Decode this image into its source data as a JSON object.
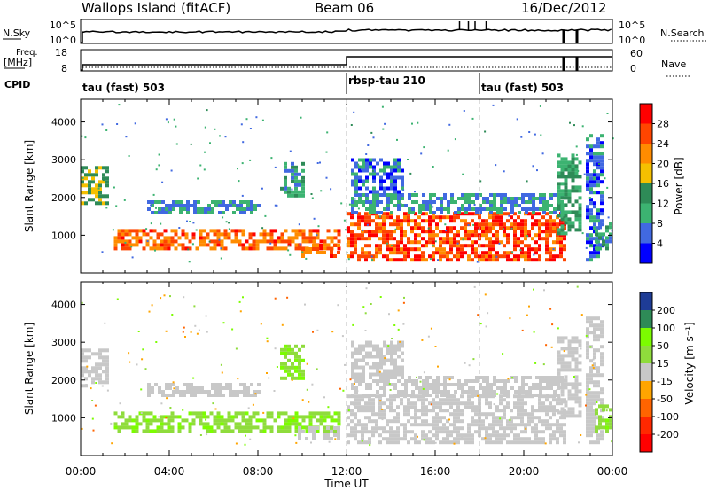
{
  "header": {
    "title": "Wallops Island (fitACF)",
    "beam": "Beam 06",
    "date": "16/Dec/2012"
  },
  "top_panels": {
    "nsky_label": "N.Sky",
    "nsky_ticks": [
      "10^5",
      "10^0"
    ],
    "nsearch_label": "N.Search",
    "nsearch_ticks": [
      "10^5",
      "10^0"
    ],
    "freq_label_top": "Freq.",
    "freq_label_bottom": "[MHz]",
    "freq_ticks": [
      "18",
      "8"
    ],
    "nave_label": "Nave",
    "nave_ticks": [
      "60",
      "0"
    ],
    "cpid_label": "CPID",
    "cpid_segments": [
      "tau (fast) 503",
      "rbsp-tau 210",
      "tau (fast) 503"
    ]
  },
  "power_panel": {
    "ylabel": "Slant Range [km]",
    "cbar_label": "Power [dB]",
    "cbar_ticks": [
      "28",
      "24",
      "20",
      "16",
      "12",
      "8",
      "4"
    ],
    "cbar_colors": [
      "#ff0000",
      "#ff4500",
      "#ff8c00",
      "#f5c000",
      "#2e8b57",
      "#3cb371",
      "#4169e1",
      "#0000ff"
    ]
  },
  "velocity_panel": {
    "ylabel": "Slant Range [km]",
    "cbar_label": "Velocity [m s⁻¹]",
    "cbar_ticks": [
      "200",
      "100",
      "50",
      "15",
      "-15",
      "-50",
      "-100",
      "-200"
    ],
    "cbar_colors": [
      "#1e3c96",
      "#2e8b57",
      "#7cfc00",
      "#8fdc3c",
      "#c8c8c8",
      "#ffa500",
      "#ff6400",
      "#ff2800",
      "#ff0000"
    ]
  },
  "xaxis": {
    "ticks": [
      "00:00",
      "04:00",
      "08:00",
      "12:00",
      "16:00",
      "20:00",
      "00:00"
    ],
    "label": "Time UT"
  },
  "chart_data": [
    {
      "type": "heatmap",
      "name_hint": "power",
      "xlabel": "Time UT",
      "ylabel": "Slant Range [km]",
      "xlim": [
        0,
        24
      ],
      "ylim": [
        0,
        4600
      ],
      "yticks": [
        1000,
        2000,
        3000,
        4000
      ],
      "colorbar": "Power [dB]",
      "bands": [
        {
          "t0": 0.0,
          "t1": 1.2,
          "r0": 1800,
          "r1": 2800,
          "v": 16
        },
        {
          "t0": 1.5,
          "t1": 11.7,
          "r0": 600,
          "r1": 1100,
          "v": 24
        },
        {
          "t0": 3.0,
          "t1": 8.0,
          "r0": 1550,
          "r1": 1900,
          "v": 8
        },
        {
          "t0": 9.0,
          "t1": 10.0,
          "r0": 2000,
          "r1": 2900,
          "v": 10
        },
        {
          "t0": 9.8,
          "t1": 11.7,
          "r0": 400,
          "r1": 700,
          "v": 24
        },
        {
          "t0": 12.0,
          "t1": 21.8,
          "r0": 300,
          "r1": 1550,
          "v": 26
        },
        {
          "t0": 12.2,
          "t1": 21.8,
          "r0": 1550,
          "r1": 2100,
          "v": 8
        },
        {
          "t0": 12.2,
          "t1": 14.5,
          "r0": 2100,
          "r1": 3000,
          "v": 6
        },
        {
          "t0": 21.5,
          "t1": 22.5,
          "r0": 1000,
          "r1": 3100,
          "v": 12
        },
        {
          "t0": 22.8,
          "t1": 23.6,
          "r0": 300,
          "r1": 3600,
          "v": 6
        },
        {
          "t0": 23.2,
          "t1": 24.0,
          "r0": 600,
          "r1": 1300,
          "v": 10
        }
      ]
    },
    {
      "type": "heatmap",
      "name_hint": "velocity",
      "xlabel": "Time UT",
      "ylabel": "Slant Range [km]",
      "xlim": [
        0,
        24
      ],
      "ylim": [
        0,
        4600
      ],
      "yticks": [
        1000,
        2000,
        3000,
        4000
      ],
      "colorbar": "Velocity [m s⁻¹]",
      "bands": [
        {
          "t0": 0.0,
          "t1": 1.2,
          "r0": 1800,
          "r1": 2800,
          "v": 0
        },
        {
          "t0": 1.5,
          "t1": 11.7,
          "r0": 600,
          "r1": 1100,
          "v": 25
        },
        {
          "t0": 3.0,
          "t1": 8.0,
          "r0": 1550,
          "r1": 1900,
          "v": 0
        },
        {
          "t0": 9.0,
          "t1": 10.0,
          "r0": 2000,
          "r1": 2900,
          "v": 25
        },
        {
          "t0": 9.8,
          "t1": 11.7,
          "r0": 400,
          "r1": 700,
          "v": 0
        },
        {
          "t0": 12.0,
          "t1": 21.8,
          "r0": 300,
          "r1": 1550,
          "v": 0
        },
        {
          "t0": 12.2,
          "t1": 21.8,
          "r0": 1550,
          "r1": 2100,
          "v": 0
        },
        {
          "t0": 12.2,
          "t1": 14.5,
          "r0": 2100,
          "r1": 3000,
          "v": 0
        },
        {
          "t0": 21.5,
          "t1": 22.5,
          "r0": 1000,
          "r1": 3100,
          "v": 0
        },
        {
          "t0": 22.8,
          "t1": 23.6,
          "r0": 300,
          "r1": 3600,
          "v": 0
        },
        {
          "t0": 23.2,
          "t1": 24.0,
          "r0": 600,
          "r1": 1300,
          "v": 25
        }
      ]
    }
  ]
}
